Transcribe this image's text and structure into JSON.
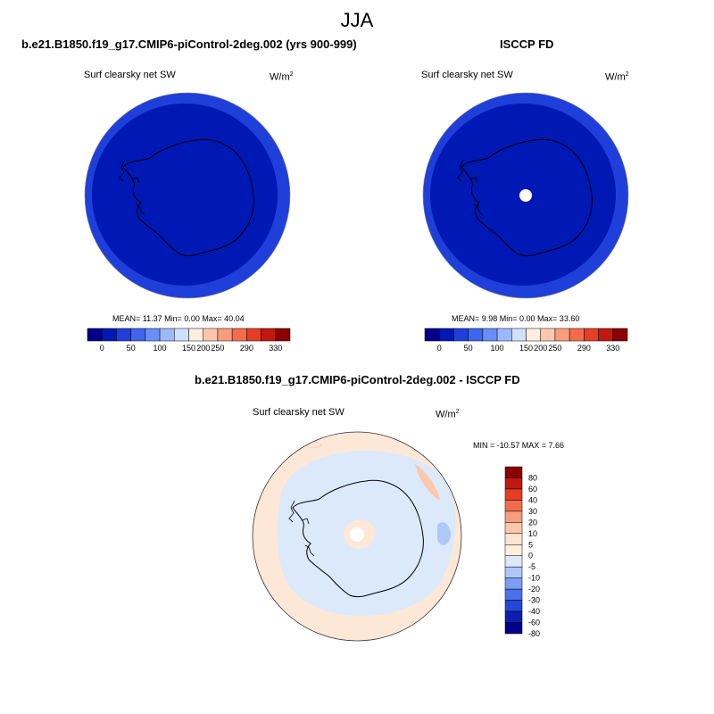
{
  "title": "JJA",
  "chart_data": [
    {
      "type": "heatmap",
      "title": "b.e21.B1850.f19_g17.CMIP6-piControl-2deg.002 (yrs 900-999)",
      "variable": "Surf clearsky net SW",
      "units": "W/m",
      "units_exp": "2",
      "stats": "MEAN=  11.37  Min=   0.00  Max=  40.04",
      "mean": 11.37,
      "min": 0.0,
      "max": 40.04,
      "colorbar_ticks": [
        "0",
        "50",
        "100",
        "150",
        "200",
        "250",
        "290",
        "330"
      ],
      "colorbar_colors": [
        "#00008a",
        "#0018b4",
        "#1f3fda",
        "#3f64ee",
        "#6a8ef5",
        "#9bb8f8",
        "#cfe0fb",
        "#ffeedd",
        "#fcc7ab",
        "#f89c7c",
        "#f26c4c",
        "#e53e23",
        "#c2180f",
        "#8b0000"
      ]
    },
    {
      "type": "heatmap",
      "title": "ISCCP FD",
      "variable": "Surf clearsky net SW",
      "units": "W/m",
      "units_exp": "2",
      "stats": "MEAN=   9.98  Min=   0.00  Max=  33.60",
      "mean": 9.98,
      "min": 0.0,
      "max": 33.6,
      "colorbar_ticks": [
        "0",
        "50",
        "100",
        "150",
        "200",
        "250",
        "290",
        "330"
      ],
      "colorbar_colors": [
        "#00008a",
        "#0018b4",
        "#1f3fda",
        "#3f64ee",
        "#6a8ef5",
        "#9bb8f8",
        "#cfe0fb",
        "#ffeedd",
        "#fcc7ab",
        "#f89c7c",
        "#f26c4c",
        "#e53e23",
        "#c2180f",
        "#8b0000"
      ]
    },
    {
      "type": "heatmap",
      "title": "b.e21.B1850.f19_g17.CMIP6-piControl-2deg.002 - ISCCP FD",
      "variable": "Surf clearsky net SW",
      "units": "W/m",
      "units_exp": "2",
      "stats": "MIN = -10.57 MAX =   7.66",
      "min": -10.57,
      "max": 7.66,
      "colorbar_ticks": [
        "80",
        "60",
        "40",
        "30",
        "20",
        "10",
        "5",
        "0",
        "-5",
        "-10",
        "-20",
        "-30",
        "-40",
        "-60",
        "-80"
      ],
      "colorbar_colors": [
        "#8b0000",
        "#c2180f",
        "#e53e23",
        "#f26c4c",
        "#f89c7c",
        "#fcc7ab",
        "#ffe4d0",
        "#fdeede",
        "#dbe9fb",
        "#aec8f8",
        "#7c9df3",
        "#4a71ec",
        "#2347d6",
        "#0d1eb0",
        "#00008a"
      ]
    }
  ],
  "colors": {
    "outer_ring": "#1f3fda",
    "interior": "#0018b4",
    "diff_neutral": "#fde8d8",
    "diff_negative": "#dbe9fb",
    "diff_positive": "#fcc7ab",
    "coastline": "#000000"
  }
}
